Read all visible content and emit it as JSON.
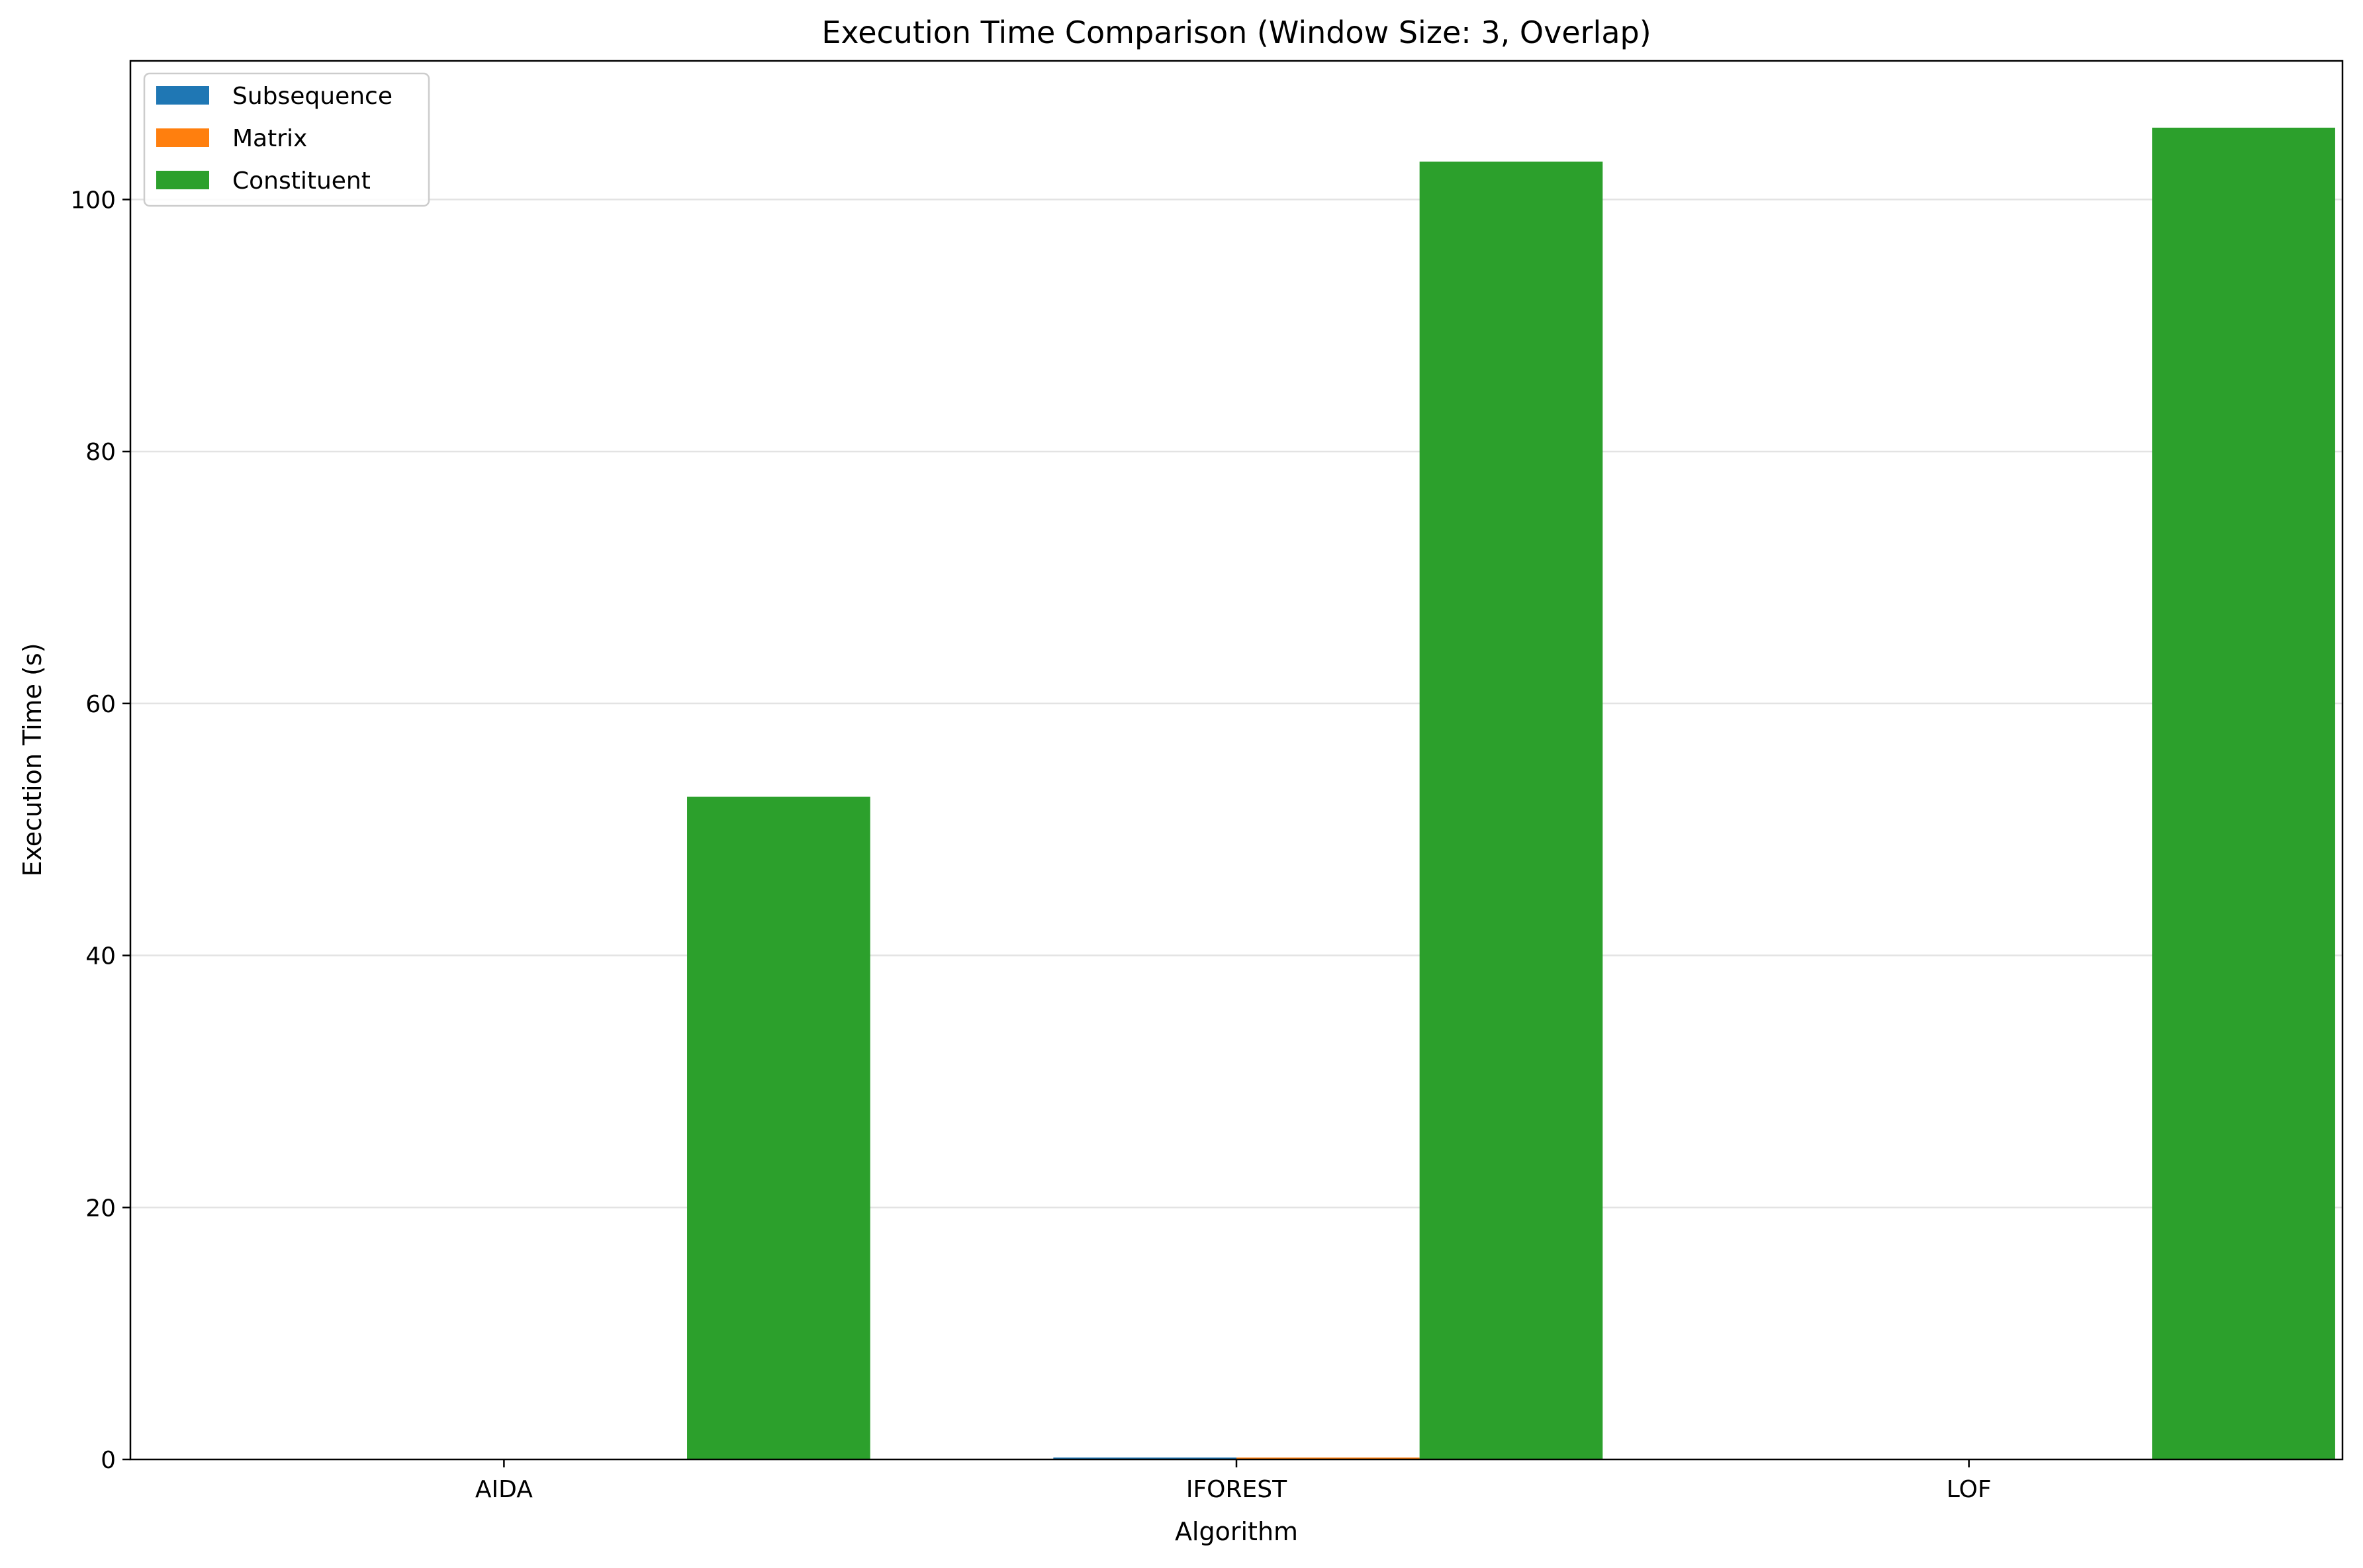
{
  "chart_data": {
    "type": "bar",
    "title": "Execution Time Comparison (Window Size: 3, Overlap)",
    "xlabel": "Algorithm",
    "ylabel": "Execution Time (s)",
    "categories": [
      "AIDA",
      "IFOREST",
      "LOF"
    ],
    "series": [
      {
        "name": "Subsequence",
        "color": "#1f77b4",
        "values": [
          0.05,
          0.15,
          0.05
        ]
      },
      {
        "name": "Matrix",
        "color": "#ff7f0e",
        "values": [
          0.05,
          0.15,
          0.05
        ]
      },
      {
        "name": "Constituent",
        "color": "#2ca02c",
        "values": [
          52.6,
          103.0,
          105.7
        ]
      }
    ],
    "ylim": [
      0,
      111
    ],
    "yticks": [
      0,
      20,
      40,
      60,
      80,
      100
    ],
    "grid": "y",
    "legend_position": "top-left"
  }
}
